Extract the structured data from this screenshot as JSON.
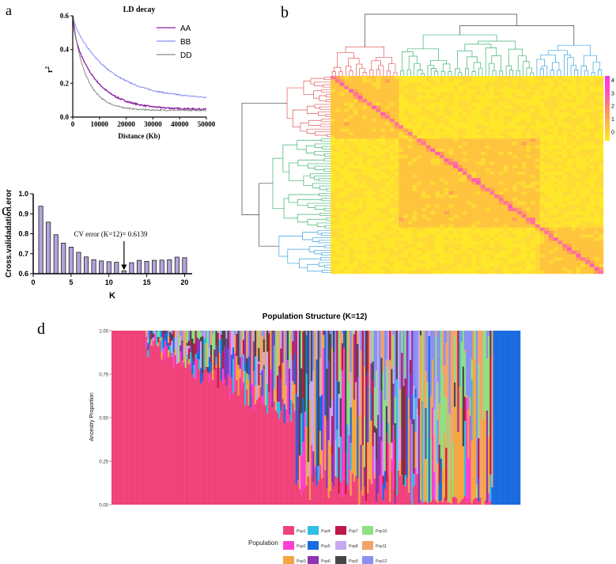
{
  "panels": {
    "a": "a",
    "b": "b",
    "c": "c",
    "d": "d"
  },
  "chart_data": [
    {
      "id": "a",
      "type": "line",
      "title": "LD decay",
      "xlabel": "Distance (Kb)",
      "ylabel": "r2",
      "ylabel_main": "r",
      "ylabel_sup": "2",
      "xlim": [
        0,
        50000
      ],
      "ylim": [
        0,
        0.6
      ],
      "xticks": [
        0,
        10000,
        20000,
        30000,
        40000,
        50000
      ],
      "xtick_labels": [
        "0",
        "10000",
        "20000",
        "30000",
        "40000",
        "50000"
      ],
      "yticks": [
        0.0,
        0.2,
        0.4,
        0.6
      ],
      "ytick_labels": [
        "0.0",
        "0.2",
        "0.4",
        "0.6"
      ],
      "legend_position": "top-right",
      "series": [
        {
          "name": "AA",
          "color": "#8b1fa3",
          "start": 0.5,
          "end": 0.045,
          "scale": 9000
        },
        {
          "name": "BB",
          "color": "#8a8cf5",
          "start": 0.56,
          "end": 0.105,
          "scale": 14000
        },
        {
          "name": "DD",
          "color": "#8c8c8c",
          "start": 0.55,
          "end": 0.04,
          "scale": 5500
        }
      ]
    },
    {
      "id": "b",
      "type": "heatmap",
      "title": "",
      "colorbar_ticks": [
        "4",
        "3",
        "2",
        "1",
        "0"
      ],
      "colorbar_range": [
        -0.7,
        4.3
      ],
      "colormap": [
        "#ffec1a",
        "#ffbb44",
        "#ff8a6a",
        "#ff4fc0",
        "#ff2fe6"
      ],
      "clusters": [
        {
          "name": "red",
          "color": "#e05a5a"
        },
        {
          "name": "green",
          "color": "#3cb371"
        },
        {
          "name": "blue",
          "color": "#3aa0e0"
        }
      ]
    },
    {
      "id": "c",
      "type": "bar",
      "title": "",
      "xlabel": "K",
      "ylabel": "Cross.validadation.eror",
      "categories": [
        1,
        2,
        3,
        4,
        5,
        6,
        7,
        8,
        9,
        10,
        11,
        12,
        13,
        14,
        15,
        16,
        17,
        18,
        19,
        20
      ],
      "values": [
        0.938,
        0.858,
        0.795,
        0.753,
        0.733,
        0.707,
        0.684,
        0.67,
        0.664,
        0.66,
        0.657,
        0.6139,
        0.655,
        0.667,
        0.662,
        0.667,
        0.668,
        0.67,
        0.683,
        0.68
      ],
      "bar_color": "#b3a3dc",
      "xlim": [
        0,
        21
      ],
      "ylim": [
        0.6,
        1.0
      ],
      "xticks": [
        0,
        5,
        10,
        15,
        20
      ],
      "xtick_labels": [
        "0",
        "5",
        "10",
        "15",
        "20"
      ],
      "yticks": [
        0.6,
        0.7,
        0.8,
        0.9,
        1.0
      ],
      "ytick_labels": [
        "0.6",
        "0.7",
        "0.8",
        "0.9",
        "1.0"
      ],
      "annotation": "CV error (K=12)= 0.6139",
      "annotation_k": 12
    },
    {
      "id": "d",
      "type": "bar",
      "stacked": true,
      "title": "Population Structure (K=12)",
      "xlabel": "",
      "ylabel": "Ancestry Proportion",
      "ylim": [
        0,
        1
      ],
      "yticks": [
        0,
        0.25,
        0.5,
        0.75,
        1.0
      ],
      "ytick_labels": [
        "0.00",
        "0.25",
        "0.50",
        "0.75",
        "1.00"
      ],
      "legend_title": "Population",
      "legend_position": "bottom",
      "series": [
        {
          "name": "Pop1",
          "color": "#f0437a"
        },
        {
          "name": "Pop2",
          "color": "#ff3fd2"
        },
        {
          "name": "Pop3",
          "color": "#f4a640"
        },
        {
          "name": "Pop4",
          "color": "#2fc0e4"
        },
        {
          "name": "Pop5",
          "color": "#1a6be0"
        },
        {
          "name": "Pop6",
          "color": "#8e35b5"
        },
        {
          "name": "Pop7",
          "color": "#c0184a"
        },
        {
          "name": "Pop8",
          "color": "#c7a8f0"
        },
        {
          "name": "Pop9",
          "color": "#474747"
        },
        {
          "name": "Pop10",
          "color": "#8ee082"
        },
        {
          "name": "Pop11",
          "color": "#f2a36a"
        },
        {
          "name": "Pop12",
          "color": "#8a90f2"
        }
      ]
    }
  ]
}
